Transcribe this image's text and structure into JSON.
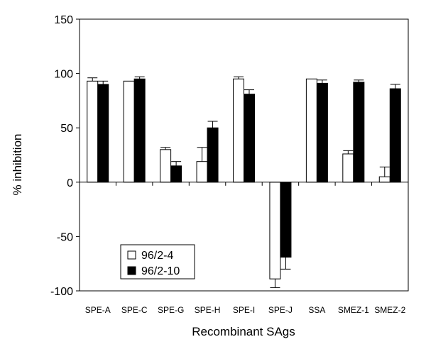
{
  "chart_data": {
    "type": "bar",
    "title": "",
    "xlabel": "Recombinant SAgs",
    "ylabel": "% inhibition",
    "ylim": [
      -100,
      150
    ],
    "yticks": [
      -100,
      -50,
      0,
      50,
      100,
      150
    ],
    "grid": false,
    "legend_position": "bottom-left",
    "categories": [
      "SPE-A",
      "SPE-C",
      "SPE-G",
      "SPE-H",
      "SPE-I",
      "SPE-J",
      "SSA",
      "SMEZ-1",
      "SMEZ-2"
    ],
    "series": [
      {
        "name": "96/2-4",
        "color": "#ffffff",
        "values": [
          93,
          93,
          30,
          19,
          95,
          -89,
          95,
          26,
          5
        ],
        "errors": [
          3,
          0,
          2,
          13,
          2,
          8,
          0,
          3,
          9
        ]
      },
      {
        "name": "96/2-10",
        "color": "#000000",
        "values": [
          90,
          95,
          15,
          50,
          81,
          -69,
          91,
          92,
          86
        ],
        "errors": [
          3,
          2,
          4,
          6,
          4,
          11,
          3,
          2,
          4
        ]
      }
    ]
  }
}
